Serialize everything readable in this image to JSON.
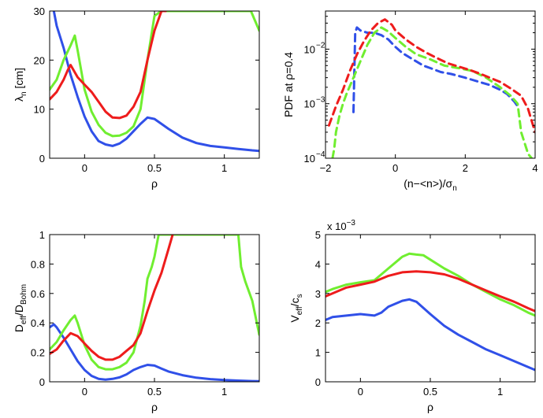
{
  "chart_data": [
    {
      "id": "p1",
      "type": "line",
      "xlabel": "ρ",
      "ylabel_main": "λ",
      "ylabel_sub": "n",
      "ylabel_tail": " [cm]",
      "xlim": [
        -0.25,
        1.25
      ],
      "ylim": [
        0,
        30
      ],
      "xticks": [
        0,
        0.5,
        1
      ],
      "xtick_labels": [
        "0",
        "0.5",
        "1"
      ],
      "yticks": [
        0,
        10,
        20,
        30
      ],
      "ytick_labels": [
        "0",
        "10",
        "20",
        "30"
      ],
      "series": [
        {
          "color": "#3050e8",
          "x": [
            -0.22,
            -0.2,
            -0.15,
            -0.1,
            -0.05,
            0,
            0.05,
            0.1,
            0.15,
            0.2,
            0.25,
            0.3,
            0.35,
            0.4,
            0.45,
            0.5,
            0.55,
            0.6,
            0.7,
            0.8,
            0.9,
            1.0,
            1.1,
            1.2,
            1.25
          ],
          "y": [
            30,
            27,
            22.5,
            17,
            12.5,
            8.5,
            5.5,
            3.5,
            2.8,
            2.5,
            3,
            4,
            5.5,
            7,
            8.3,
            8,
            7,
            6,
            4.2,
            3.1,
            2.5,
            2.2,
            1.9,
            1.6,
            1.5
          ]
        },
        {
          "color": "#70ee30",
          "x": [
            -0.25,
            -0.2,
            -0.15,
            -0.1,
            -0.07,
            -0.05,
            0,
            0.05,
            0.1,
            0.15,
            0.2,
            0.25,
            0.3,
            0.35,
            0.4,
            0.45,
            0.5,
            0.55,
            0.6,
            1.19,
            1.22,
            1.25
          ],
          "y": [
            14,
            16,
            20,
            23,
            25,
            22,
            14,
            9.5,
            6.8,
            5.2,
            4.5,
            4.6,
            5.2,
            6.5,
            10,
            20,
            29,
            30,
            30,
            30,
            28,
            26
          ]
        },
        {
          "color": "#ee1c1c",
          "x": [
            -0.25,
            -0.2,
            -0.15,
            -0.12,
            -0.1,
            -0.05,
            0,
            0.05,
            0.1,
            0.15,
            0.2,
            0.25,
            0.3,
            0.35,
            0.4,
            0.45,
            0.5,
            0.55,
            0.58
          ],
          "y": [
            12,
            13.5,
            16,
            18,
            19,
            16.5,
            15,
            13.5,
            11.5,
            9.5,
            8.3,
            8.2,
            8.7,
            10.5,
            13.5,
            20,
            26,
            30,
            30
          ]
        }
      ]
    },
    {
      "id": "p2",
      "type": "line",
      "yscale": "log",
      "xlabel_main": "(n−<n>)/σ",
      "xlabel_sub": "n",
      "ylabel": "PDF at ρ=0.4",
      "xlim": [
        -2,
        4
      ],
      "ylim": [
        0.0001,
        0.05
      ],
      "xticks": [
        -2,
        0,
        2,
        4
      ],
      "xtick_labels": [
        "−2",
        "0",
        "2",
        "4"
      ],
      "yticks": [
        0.0001,
        0.001,
        0.01
      ],
      "ytick_labels": [
        "10",
        "10",
        "10"
      ],
      "ytick_exponents": [
        "−4",
        "−3",
        "−2"
      ],
      "series": [
        {
          "color": "#3050e8",
          "dashed": true,
          "x": [
            -1.2,
            -1.15,
            -1.1,
            -1.0,
            -0.8,
            -0.6,
            -0.4,
            -0.2,
            0,
            0.2,
            0.5,
            0.8,
            1.0,
            1.3,
            1.6,
            2.0,
            2.4,
            2.7,
            3.0,
            3.2,
            3.4,
            3.5
          ],
          "y": [
            0.0007,
            0.02,
            0.025,
            0.022,
            0.02,
            0.02,
            0.018,
            0.015,
            0.011,
            0.0085,
            0.0065,
            0.005,
            0.0045,
            0.0038,
            0.0035,
            0.003,
            0.0025,
            0.0022,
            0.0018,
            0.0015,
            0.0011,
            0.0009
          ]
        },
        {
          "color": "#70ee30",
          "dashed": true,
          "x": [
            -1.8,
            -1.75,
            -1.7,
            -1.6,
            -1.5,
            -1.4,
            -1.2,
            -1.0,
            -0.8,
            -0.6,
            -0.4,
            -0.2,
            0,
            0.3,
            0.6,
            1.0,
            1.4,
            1.8,
            2.2,
            2.6,
            3.0,
            3.3,
            3.5,
            3.6,
            3.8,
            3.9
          ],
          "y": [
            0.0001,
            0.00015,
            0.0003,
            0.0006,
            0.001,
            0.0015,
            0.003,
            0.006,
            0.012,
            0.02,
            0.025,
            0.021,
            0.016,
            0.011,
            0.008,
            0.0065,
            0.005,
            0.0045,
            0.004,
            0.003,
            0.002,
            0.0014,
            0.001,
            0.0003,
            0.00012,
            0.0001
          ]
        },
        {
          "color": "#ee1c1c",
          "dashed": true,
          "x": [
            -1.9,
            -1.7,
            -1.5,
            -1.3,
            -1.1,
            -0.9,
            -0.7,
            -0.5,
            -0.3,
            -0.1,
            0,
            0.3,
            0.6,
            0.9,
            1.2,
            1.5,
            1.8,
            2.1,
            2.4,
            2.7,
            3.0,
            3.3,
            3.6,
            3.8,
            4.0
          ],
          "y": [
            0.0004,
            0.0009,
            0.0018,
            0.004,
            0.008,
            0.014,
            0.022,
            0.03,
            0.035,
            0.028,
            0.022,
            0.015,
            0.011,
            0.0085,
            0.0068,
            0.0055,
            0.0048,
            0.0042,
            0.0036,
            0.003,
            0.0025,
            0.0019,
            0.0014,
            0.0008,
            0.0003
          ]
        }
      ]
    },
    {
      "id": "p3",
      "type": "line",
      "xlabel": "ρ",
      "ylabel_main": "D",
      "ylabel_sub": "eff",
      "ylabel_mid": "/D",
      "ylabel_sub2": "Bohm",
      "xlim": [
        -0.25,
        1.25
      ],
      "ylim": [
        0,
        1
      ],
      "xticks": [
        0,
        0.5,
        1
      ],
      "xtick_labels": [
        "0",
        "0.5",
        "1"
      ],
      "yticks": [
        0,
        0.2,
        0.4,
        0.6,
        0.8,
        1
      ],
      "ytick_labels": [
        "0",
        "0.2",
        "0.4",
        "0.6",
        "0.8",
        "1"
      ],
      "series": [
        {
          "color": "#3050e8",
          "x": [
            -0.25,
            -0.22,
            -0.2,
            -0.15,
            -0.1,
            -0.05,
            0,
            0.05,
            0.1,
            0.15,
            0.2,
            0.25,
            0.3,
            0.35,
            0.4,
            0.45,
            0.5,
            0.55,
            0.6,
            0.7,
            0.8,
            0.9,
            1.0,
            1.1,
            1.2,
            1.25
          ],
          "y": [
            0.37,
            0.39,
            0.37,
            0.3,
            0.22,
            0.14,
            0.08,
            0.04,
            0.02,
            0.015,
            0.02,
            0.03,
            0.05,
            0.08,
            0.1,
            0.115,
            0.11,
            0.09,
            0.07,
            0.045,
            0.028,
            0.018,
            0.012,
            0.008,
            0.005,
            0.004
          ]
        },
        {
          "color": "#70ee30",
          "x": [
            -0.25,
            -0.2,
            -0.15,
            -0.1,
            -0.07,
            -0.05,
            0,
            0.05,
            0.1,
            0.15,
            0.2,
            0.25,
            0.3,
            0.35,
            0.4,
            0.43,
            0.45,
            0.48,
            0.5,
            0.53,
            0.55,
            1.1,
            1.12,
            1.15,
            1.2,
            1.25
          ],
          "y": [
            0.22,
            0.27,
            0.35,
            0.42,
            0.45,
            0.4,
            0.25,
            0.15,
            0.1,
            0.085,
            0.085,
            0.1,
            0.13,
            0.2,
            0.38,
            0.55,
            0.7,
            0.78,
            0.85,
            1,
            1,
            1,
            0.78,
            0.68,
            0.55,
            0.32
          ]
        },
        {
          "color": "#ee1c1c",
          "x": [
            -0.25,
            -0.2,
            -0.15,
            -0.1,
            -0.05,
            0,
            0.05,
            0.1,
            0.15,
            0.2,
            0.25,
            0.3,
            0.35,
            0.4,
            0.45,
            0.5,
            0.55,
            0.6,
            0.63
          ],
          "y": [
            0.19,
            0.22,
            0.28,
            0.33,
            0.31,
            0.26,
            0.21,
            0.17,
            0.15,
            0.15,
            0.17,
            0.21,
            0.25,
            0.33,
            0.48,
            0.62,
            0.74,
            0.9,
            1
          ]
        }
      ]
    },
    {
      "id": "p4",
      "type": "line",
      "xlabel": "ρ",
      "ylabel_main": "V",
      "ylabel_sub": "eff",
      "ylabel_mid": "/c",
      "ylabel_sub2": "s",
      "multiplier_text": "x 10",
      "multiplier_exp": "−3",
      "xlim": [
        -0.25,
        1.25
      ],
      "ylim": [
        0,
        5
      ],
      "xticks": [
        0,
        0.5,
        1
      ],
      "xtick_labels": [
        "0",
        "0.5",
        "1"
      ],
      "yticks": [
        0,
        1,
        2,
        3,
        4,
        5
      ],
      "ytick_labels": [
        "0",
        "1",
        "2",
        "3",
        "4",
        "5"
      ],
      "series": [
        {
          "color": "#3050e8",
          "x": [
            -0.25,
            -0.2,
            -0.1,
            0,
            0.1,
            0.15,
            0.2,
            0.3,
            0.35,
            0.4,
            0.5,
            0.6,
            0.7,
            0.8,
            0.9,
            1.0,
            1.1,
            1.2,
            1.25
          ],
          "y": [
            2.1,
            2.2,
            2.25,
            2.3,
            2.25,
            2.35,
            2.55,
            2.75,
            2.8,
            2.72,
            2.3,
            1.9,
            1.6,
            1.35,
            1.1,
            0.9,
            0.7,
            0.5,
            0.4
          ]
        },
        {
          "color": "#70ee30",
          "x": [
            -0.25,
            -0.2,
            -0.1,
            0,
            0.1,
            0.2,
            0.3,
            0.35,
            0.4,
            0.45,
            0.5,
            0.6,
            0.7,
            0.8,
            0.9,
            1.0,
            1.1,
            1.2,
            1.25
          ],
          "y": [
            3.05,
            3.15,
            3.3,
            3.38,
            3.45,
            3.85,
            4.25,
            4.35,
            4.32,
            4.3,
            4.15,
            3.85,
            3.6,
            3.3,
            3.05,
            2.8,
            2.6,
            2.35,
            2.25
          ]
        },
        {
          "color": "#ee1c1c",
          "x": [
            -0.25,
            -0.2,
            -0.1,
            0,
            0.1,
            0.2,
            0.3,
            0.4,
            0.5,
            0.6,
            0.7,
            0.8,
            0.9,
            1.0,
            1.1,
            1.2,
            1.25
          ],
          "y": [
            2.9,
            3.0,
            3.2,
            3.3,
            3.4,
            3.6,
            3.72,
            3.75,
            3.72,
            3.65,
            3.5,
            3.3,
            3.1,
            2.9,
            2.72,
            2.5,
            2.4
          ]
        }
      ]
    }
  ]
}
